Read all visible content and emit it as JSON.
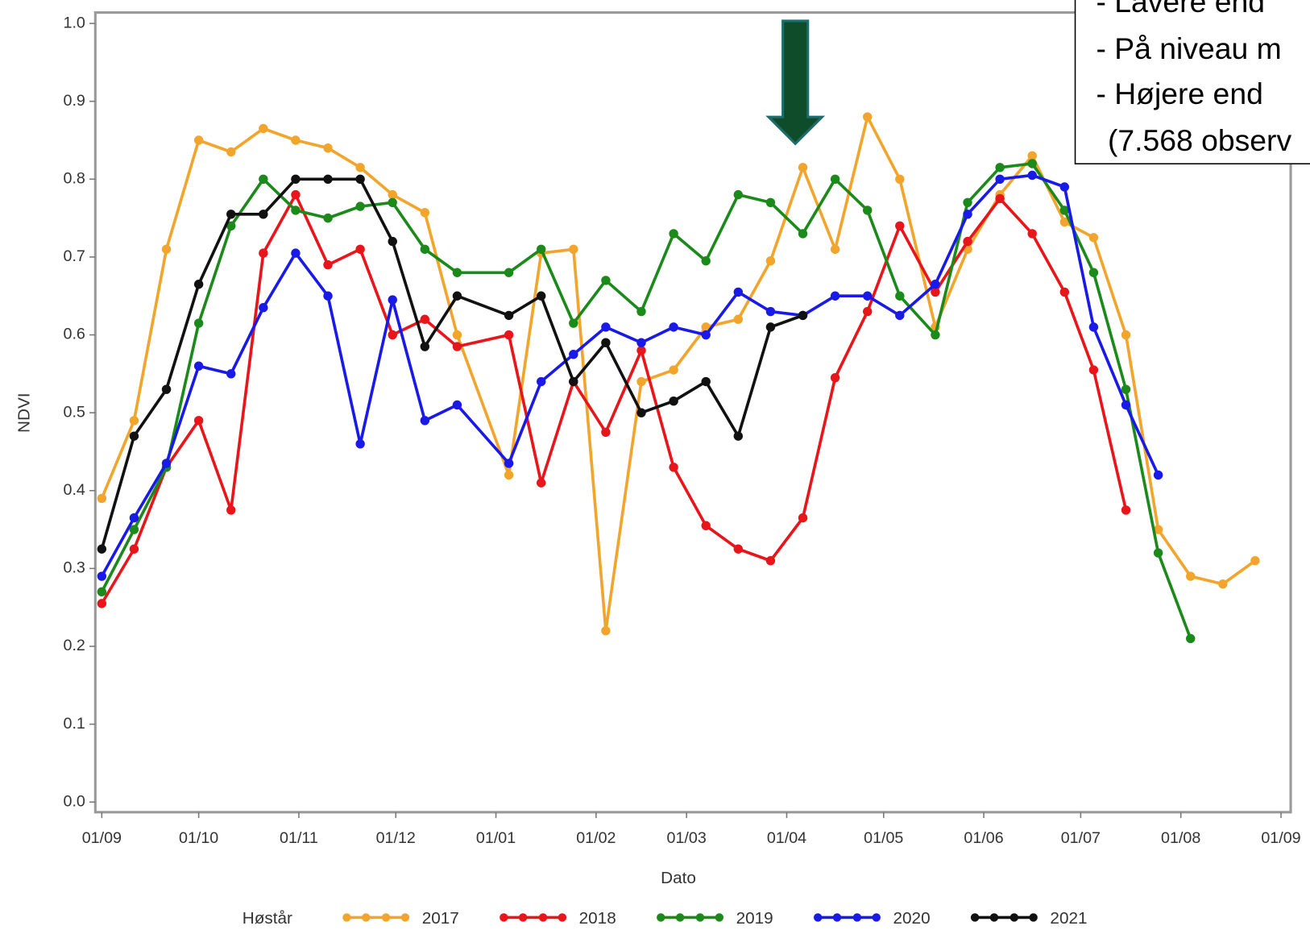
{
  "chart_data": {
    "type": "line",
    "xlabel": "Dato",
    "ylabel": "NDVI",
    "legend_title": "Høstår",
    "annotations": [
      "- Lavere end",
      "- På niveau m",
      "- Højere end",
      "(7.568 observ"
    ],
    "x": [
      0,
      10,
      20,
      30,
      40,
      50,
      60,
      70,
      80,
      90,
      100,
      110,
      126,
      136,
      146,
      156,
      167,
      177,
      187,
      197,
      207,
      217,
      227,
      237,
      247,
      258,
      268,
      278,
      288,
      298,
      307,
      317,
      327,
      337,
      347,
      357
    ],
    "series": [
      {
        "name": "2017",
        "color": "#f2a52c",
        "values": [
          0.39,
          0.49,
          0.71,
          0.85,
          0.835,
          0.865,
          0.85,
          0.84,
          0.815,
          0.78,
          0.757,
          0.6,
          0.42,
          0.705,
          0.71,
          0.22,
          0.54,
          0.555,
          0.61,
          0.62,
          0.695,
          0.815,
          0.71,
          0.88,
          0.8,
          0.61,
          0.71,
          0.78,
          0.83,
          0.745,
          0.725,
          0.6,
          0.35,
          0.29,
          0.28,
          0.31
        ]
      },
      {
        "name": "2018",
        "color": "#e8151b",
        "values": [
          0.255,
          0.325,
          0.43,
          0.49,
          0.375,
          0.705,
          0.78,
          0.69,
          0.71,
          0.6,
          0.62,
          0.585,
          0.6,
          0.41,
          0.54,
          0.475,
          0.58,
          0.43,
          0.355,
          0.325,
          0.31,
          0.365,
          0.545,
          0.63,
          0.74,
          0.655,
          0.72,
          0.775,
          0.73,
          0.655,
          0.555,
          0.375,
          null,
          null,
          null,
          null
        ]
      },
      {
        "name": "2019",
        "color": "#1b8a1b",
        "values": [
          0.27,
          0.35,
          0.43,
          0.615,
          0.74,
          0.8,
          0.76,
          0.75,
          0.765,
          0.77,
          0.71,
          0.68,
          0.68,
          0.71,
          0.615,
          0.67,
          0.63,
          0.73,
          0.695,
          0.78,
          0.77,
          0.73,
          0.8,
          0.76,
          0.65,
          0.6,
          0.77,
          0.815,
          0.82,
          0.76,
          0.68,
          0.53,
          0.32,
          0.21,
          null,
          null
        ]
      },
      {
        "name": "2020",
        "color": "#1a1ae8",
        "values": [
          0.29,
          0.365,
          0.435,
          0.56,
          0.55,
          0.635,
          0.705,
          0.65,
          0.46,
          0.645,
          0.49,
          0.51,
          0.435,
          0.54,
          0.575,
          0.61,
          0.59,
          0.61,
          0.6,
          0.655,
          0.63,
          0.625,
          0.65,
          0.65,
          0.625,
          0.665,
          0.755,
          0.8,
          0.805,
          0.79,
          0.61,
          0.51,
          0.42,
          null,
          null,
          null
        ]
      },
      {
        "name": "2021",
        "color": "#111111",
        "values": [
          0.325,
          0.47,
          0.53,
          0.665,
          0.755,
          0.755,
          0.8,
          0.8,
          0.8,
          0.72,
          0.585,
          0.65,
          0.625,
          0.65,
          0.54,
          0.59,
          0.5,
          0.515,
          0.54,
          0.47,
          0.61,
          0.625,
          null,
          null,
          null,
          null,
          null,
          null,
          null,
          null,
          null,
          null,
          null,
          null,
          null,
          null
        ]
      }
    ],
    "xlim": [
      -2,
      368
    ],
    "xticks": [
      {
        "value": 0,
        "label": "01/09"
      },
      {
        "value": 30,
        "label": "01/10"
      },
      {
        "value": 61,
        "label": "01/11"
      },
      {
        "value": 91,
        "label": "01/12"
      },
      {
        "value": 122,
        "label": "01/01"
      },
      {
        "value": 153,
        "label": "01/02"
      },
      {
        "value": 181,
        "label": "01/03"
      },
      {
        "value": 212,
        "label": "01/04"
      },
      {
        "value": 242,
        "label": "01/05"
      },
      {
        "value": 273,
        "label": "01/06"
      },
      {
        "value": 303,
        "label": "01/07"
      },
      {
        "value": 334,
        "label": "01/08"
      },
      {
        "value": 365,
        "label": "01/09"
      }
    ],
    "ylim": [
      -0.013,
      1.014
    ],
    "yticks": [
      {
        "value": 0,
        "label": "0.0"
      },
      0.1,
      0.2,
      0.3,
      0.4,
      0.5,
      0.6,
      0.7,
      0.8,
      0.9,
      {
        "value": 1,
        "label": "1.0"
      }
    ],
    "grid": false
  }
}
